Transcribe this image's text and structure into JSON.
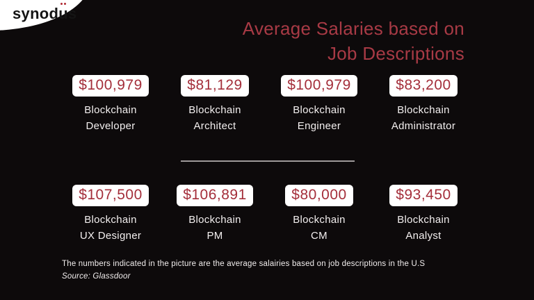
{
  "logo": {
    "name_start": "synod",
    "name_umlaut_letter": "u",
    "name_end": "s"
  },
  "title": {
    "line1": "Average Salaries based on",
    "line2": "Job Descriptions"
  },
  "cards": [
    {
      "salary": "$100,979",
      "label_line1": "Blockchain",
      "label_line2": "Developer"
    },
    {
      "salary": "$81,129",
      "label_line1": "Blockchain",
      "label_line2": "Architect"
    },
    {
      "salary": "$100,979",
      "label_line1": "Blockchain",
      "label_line2": "Engineer"
    },
    {
      "salary": "$83,200",
      "label_line1": "Blockchain",
      "label_line2": "Administrator"
    },
    {
      "salary": "$107,500",
      "label_line1": "Blockchain",
      "label_line2": "UX Designer"
    },
    {
      "salary": "$106,891",
      "label_line1": "Blockchain",
      "label_line2": "PM"
    },
    {
      "salary": "$80,000",
      "label_line1": "Blockchain",
      "label_line2": "CM"
    },
    {
      "salary": "$93,450",
      "label_line1": "Blockchain",
      "label_line2": "Analyst"
    }
  ],
  "footnote": {
    "line1": "The numbers indicated in the picture are the average salairies based on job descriptions in the U.S",
    "source": "Source: Glassdoor"
  },
  "colors": {
    "background": "#0d0a0b",
    "title_red": "#a83a45",
    "salary_red": "#a42e3a",
    "card_background": "#ffffff",
    "label_text": "#f3efef",
    "divider_gray": "#9e9a9a",
    "logo_dot_red": "#b02a33"
  },
  "chart_data": {
    "type": "table",
    "title": "Average Salaries based on Job Descriptions",
    "categories": [
      "Blockchain Developer",
      "Blockchain Architect",
      "Blockchain Engineer",
      "Blockchain Administrator",
      "Blockchain UX Designer",
      "Blockchain PM",
      "Blockchain CM",
      "Blockchain Analyst"
    ],
    "values": [
      100979,
      81129,
      100979,
      83200,
      107500,
      106891,
      80000,
      93450
    ],
    "unit": "USD",
    "region": "U.S",
    "source": "Glassdoor"
  }
}
